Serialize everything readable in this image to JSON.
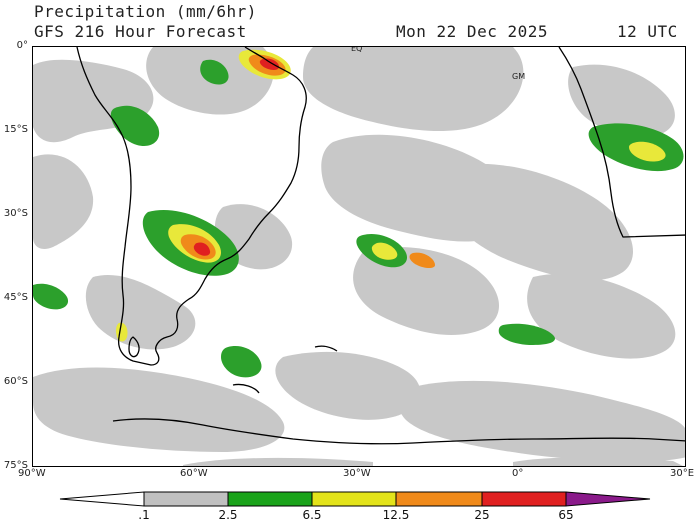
{
  "header": {
    "title": "Precipitation (mm/6hr)",
    "model": "GFS 216 Hour Forecast",
    "date": "Mon 22 Dec 2025",
    "time": "12 UTC"
  },
  "map": {
    "lat_labels": [
      "0°",
      "15°S",
      "30°S",
      "45°S",
      "60°S",
      "75°S"
    ],
    "lon_labels": [
      "90°W",
      "60°W",
      "30°W",
      "0°",
      "30°E"
    ],
    "markers": {
      "equator": "EQ",
      "greenwich": "GM"
    },
    "extent": {
      "lon": [
        -90,
        30
      ],
      "lat": [
        -75,
        0
      ]
    }
  },
  "colorbar": {
    "labels": [
      ".1",
      "2.5",
      "6.5",
      "12.5",
      "25",
      "65"
    ],
    "colors": [
      "#ffffff",
      "#c0c0c0",
      "#1aa31a",
      "#e3e31a",
      "#f08a1a",
      "#e02020",
      "#8a1a8a"
    ]
  },
  "colors": {
    "light_rain": "#c8c8c8",
    "moderate": "#2ca02c",
    "heavy": "#e8e83a",
    "very_heavy": "#f08a1a",
    "extreme": "#e02020",
    "coast": "#000000"
  }
}
